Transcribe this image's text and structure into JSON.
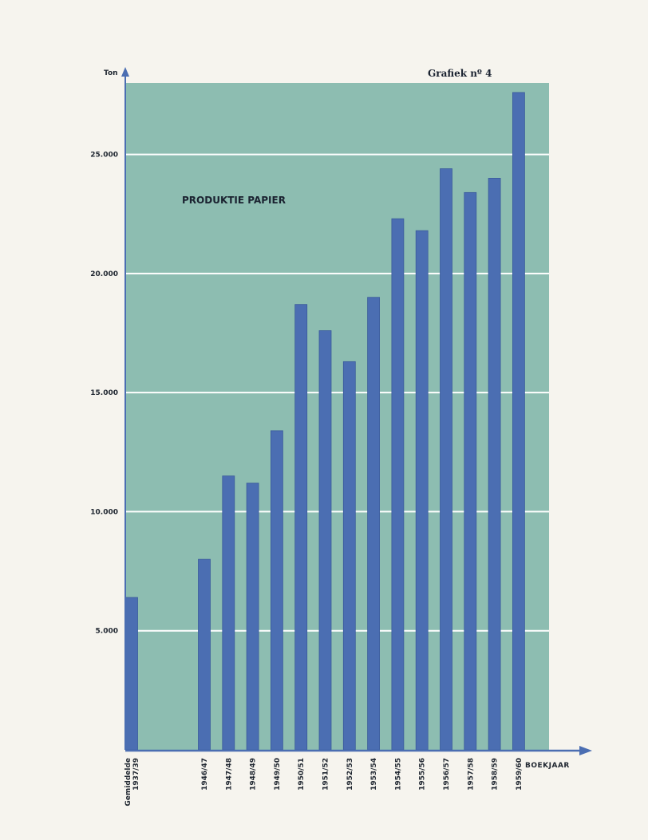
{
  "figure_label": "Grafiek nº 4",
  "colors": {
    "plot_background": "#8dbdb1",
    "bar": "#4b6eb2",
    "bar_edge": "#3a5a9b",
    "axis": "#4b6eb2",
    "grid": "#ffffff",
    "paper": "#f6f4ee"
  },
  "chart_data": {
    "type": "bar",
    "title": "PRODUKTIE PAPIER",
    "ylabel": "Ton",
    "xlabel": "BOEKJAAR",
    "ylim": [
      0,
      28000
    ],
    "yticks": [
      5000,
      10000,
      15000,
      20000,
      25000
    ],
    "ytick_labels": [
      "5.000",
      "10.000",
      "15.000",
      "20.000",
      "25.000"
    ],
    "grid": true,
    "categories": [
      [
        "Gemiddelde",
        "1937/39"
      ],
      "1946/47",
      "1947/48",
      "1948/49",
      "1949/50",
      "1950/51",
      "1951/52",
      "1952/53",
      "1953/54",
      "1954/55",
      "1955/56",
      "1956/57",
      "1957/58",
      "1958/59",
      "1959/60"
    ],
    "values": [
      6400,
      8000,
      11500,
      11200,
      13400,
      18700,
      17600,
      16300,
      19000,
      22300,
      21800,
      24400,
      23400,
      24000,
      27600
    ]
  }
}
